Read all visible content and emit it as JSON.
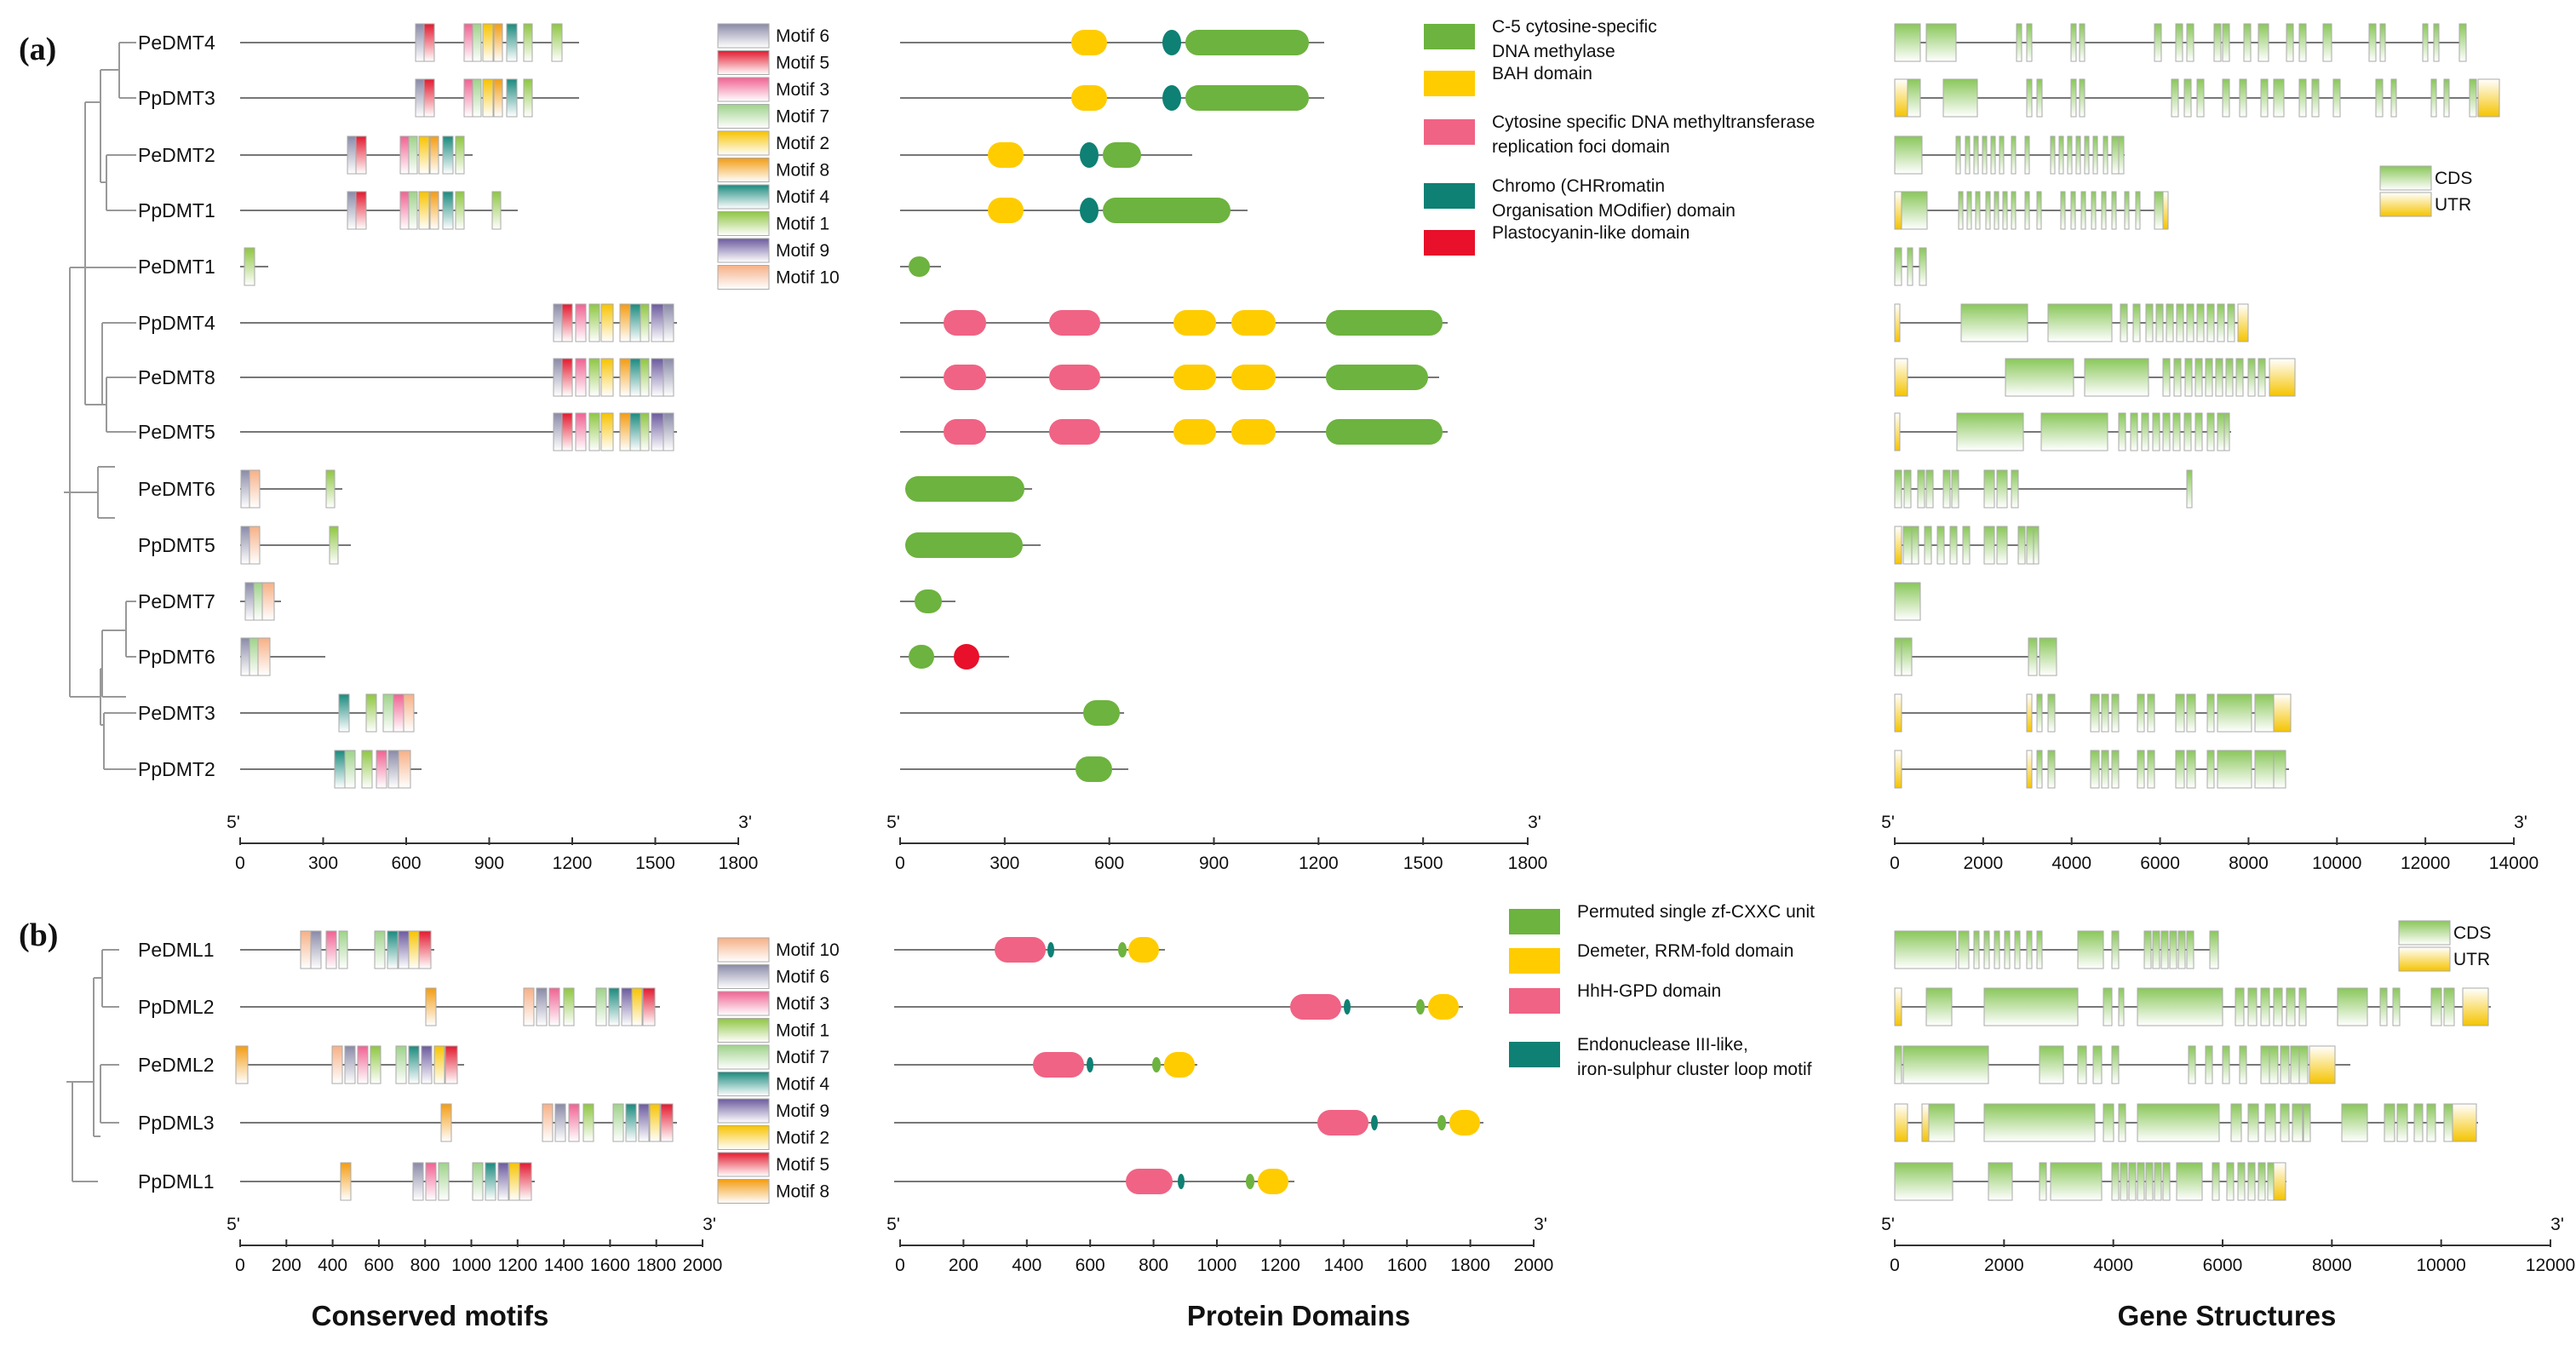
{
  "panels": [
    "(a)",
    "(b)"
  ],
  "column_titles": {
    "motifs": "Conserved motifs",
    "domains": "Protein Domains",
    "genes": "Gene Structures"
  },
  "end_labels": {
    "five": "5'",
    "three": "3'"
  },
  "colors": {
    "motif1": "#8ec641",
    "motif2": "#f7c300",
    "motif3": "#f06292",
    "motif4": "#1a8a7e",
    "motif5": "#e3192f",
    "motif6": "#8a8aa8",
    "motif7": "#9ed28a",
    "motif8": "#f39c12",
    "motif9": "#6b5a9e",
    "motif10": "#f6b086",
    "domain_green": "#6db33f",
    "domain_yellow": "#ffcc00",
    "domain_pink": "#f06384",
    "domain_teal": "#0e8074",
    "domain_red": "#e8102a",
    "cds": "#8ac75a",
    "utr": "#f5c400",
    "line": "#777777"
  },
  "panel_a": {
    "genes": [
      "PeDMT4",
      "PpDMT3",
      "PeDMT2",
      "PpDMT1",
      "PeDMT1",
      "PpDMT4",
      "PeDMT8",
      "PeDMT5",
      "PeDMT6",
      "PpDMT5",
      "PeDMT7",
      "PpDMT6",
      "PeDMT3",
      "PpDMT2"
    ],
    "motif_legend": [
      "Motif 6",
      "Motif 5",
      "Motif 3",
      "Motif 7",
      "Motif 2",
      "Motif 8",
      "Motif 4",
      "Motif 1",
      "Motif 9",
      "Motif 10"
    ],
    "domain_legend": [
      {
        "color": "domain_green",
        "lines": [
          "C-5 cytosine-specific",
          "DNA methylase"
        ]
      },
      {
        "color": "domain_yellow",
        "lines": [
          "BAH domain"
        ]
      },
      {
        "color": "domain_pink",
        "lines": [
          "Cytosine specific DNA methyltransferase",
          "replication foci domain"
        ]
      },
      {
        "color": "domain_teal",
        "lines": [
          "Chromo (CHRromatin",
          "Organisation MOdifier) domain"
        ]
      },
      {
        "color": "domain_red",
        "lines": [
          "Plastocyanin-like domain"
        ]
      }
    ],
    "gene_legend": [
      "CDS",
      "UTR"
    ],
    "motif_axis": {
      "max": 1800,
      "ticks": [
        "0",
        "300",
        "600",
        "900",
        "1200",
        "1500",
        "1800"
      ]
    },
    "domain_axis": {
      "max": 1800,
      "ticks": [
        "0",
        "300",
        "600",
        "900",
        "1200",
        "1500",
        "1800"
      ]
    },
    "gene_axis": {
      "max": 14000,
      "ticks": [
        "0",
        "2000",
        "4000",
        "6000",
        "8000",
        "10000",
        "12000",
        "14000"
      ]
    }
  },
  "panel_b": {
    "genes": [
      "PeDML1",
      "PpDML2",
      "PeDML2",
      "PpDML3",
      "PpDML1"
    ],
    "motif_legend": [
      "Motif 10",
      "Motif 6",
      "Motif 3",
      "Motif 1",
      "Motif 7",
      "Motif 4",
      "Motif 9",
      "Motif 2",
      "Motif 5",
      "Motif 8"
    ],
    "domain_legend": [
      {
        "color": "domain_green",
        "lines": [
          "Permuted single zf-CXXC unit"
        ]
      },
      {
        "color": "domain_yellow",
        "lines": [
          "Demeter, RRM-fold domain"
        ]
      },
      {
        "color": "domain_pink",
        "lines": [
          "HhH-GPD domain"
        ]
      },
      {
        "color": "domain_teal",
        "lines": [
          "Endonuclease III-like,",
          "iron-sulphur cluster loop motif"
        ]
      }
    ],
    "gene_legend": [
      "CDS",
      "UTR"
    ],
    "motif_axis": {
      "max": 2000,
      "ticks": [
        "0",
        "200",
        "400",
        "600",
        "800",
        "1000",
        "1200",
        "1400",
        "1600",
        "1800",
        "2000"
      ]
    },
    "domain_axis": {
      "max": 2000,
      "ticks": [
        "0",
        "200",
        "400",
        "600",
        "800",
        "1000",
        "1200",
        "1400",
        "1600",
        "1800",
        "2000"
      ]
    },
    "gene_axis": {
      "max": 12000,
      "ticks": [
        "0",
        "2000",
        "4000",
        "6000",
        "8000",
        "10000",
        "12000"
      ]
    }
  }
}
